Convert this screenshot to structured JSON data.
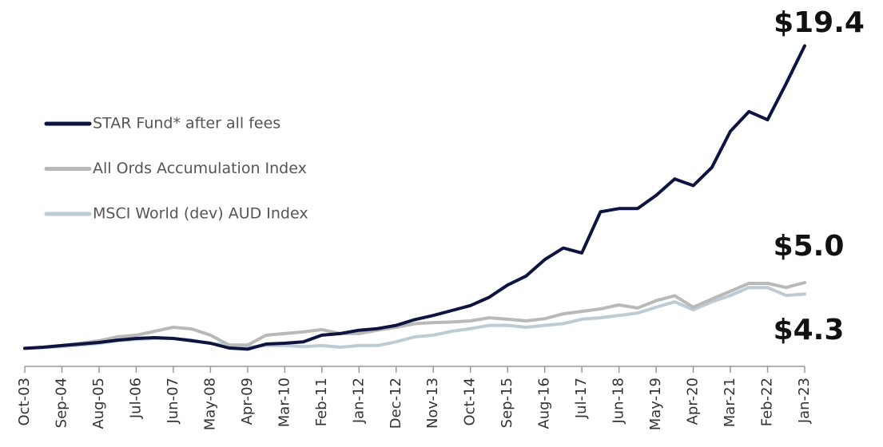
{
  "chart_data": {
    "type": "line",
    "x": [
      "Oct-03",
      null,
      "Sep-04",
      null,
      "Aug-05",
      null,
      "Jul-06",
      null,
      "Jun-07",
      null,
      "May-08",
      null,
      "Apr-09",
      null,
      "Mar-10",
      null,
      "Feb-11",
      null,
      "Jan-12",
      null,
      "Dec-12",
      null,
      "Nov-13",
      null,
      "Oct-14",
      null,
      "Sep-15",
      null,
      "Aug-16",
      null,
      "Jul-17",
      null,
      "Jun-18",
      null,
      "May-19",
      null,
      "Apr-20",
      null,
      "Mar-21",
      null,
      "Feb-22",
      null,
      "Jan-23"
    ],
    "ylim": [
      0,
      20
    ],
    "series": [
      {
        "name": "STAR Fund* after all fees",
        "color": "#0d1440",
        "values": [
          1.0,
          1.07,
          1.17,
          1.26,
          1.36,
          1.5,
          1.6,
          1.65,
          1.6,
          1.46,
          1.31,
          1.02,
          0.95,
          1.26,
          1.31,
          1.4,
          1.8,
          1.9,
          2.1,
          2.2,
          2.4,
          2.75,
          3.0,
          3.3,
          3.6,
          4.1,
          4.85,
          5.4,
          6.4,
          7.1,
          6.8,
          9.3,
          9.5,
          9.5,
          10.3,
          11.3,
          10.9,
          12.0,
          14.2,
          15.4,
          14.9,
          17.1,
          19.4
        ],
        "value_labels": [
          null,
          null,
          null,
          null,
          null,
          null,
          null,
          null,
          null,
          null,
          null,
          null,
          null,
          null,
          null,
          null,
          null,
          null,
          null,
          null,
          null,
          null,
          null,
          null,
          null,
          null,
          null,
          null,
          null,
          null,
          null,
          null,
          null,
          null,
          null,
          null,
          null,
          null,
          null,
          null,
          null,
          null,
          "$19.4"
        ]
      },
      {
        "name": "All Ords Accumulation Index",
        "color": "#b9b9b9",
        "values": [
          1.0,
          1.07,
          1.17,
          1.31,
          1.46,
          1.7,
          1.8,
          2.04,
          2.28,
          2.18,
          1.8,
          1.2,
          1.2,
          1.8,
          1.9,
          2.0,
          2.14,
          1.9,
          1.9,
          2.1,
          2.28,
          2.5,
          2.57,
          2.6,
          2.67,
          2.86,
          2.77,
          2.67,
          2.8,
          3.1,
          3.25,
          3.4,
          3.64,
          3.45,
          3.9,
          4.2,
          3.5,
          4.0,
          4.47,
          4.95,
          4.95,
          4.7,
          5.0
        ],
        "value_labels": [
          null,
          null,
          null,
          null,
          null,
          null,
          null,
          null,
          null,
          null,
          null,
          null,
          null,
          null,
          null,
          null,
          null,
          null,
          null,
          null,
          null,
          null,
          null,
          null,
          null,
          null,
          null,
          null,
          null,
          null,
          null,
          null,
          null,
          null,
          null,
          null,
          null,
          null,
          null,
          null,
          null,
          null,
          "$5.0"
        ]
      },
      {
        "name": "MSCI World (dev) AUD Index",
        "color": "#bdcbd4",
        "values": [
          1.0,
          1.05,
          1.1,
          1.2,
          1.3,
          1.46,
          1.55,
          1.6,
          1.6,
          1.5,
          1.3,
          1.2,
          1.07,
          1.17,
          1.17,
          1.1,
          1.17,
          1.07,
          1.17,
          1.17,
          1.4,
          1.7,
          1.8,
          2.04,
          2.2,
          2.4,
          2.4,
          2.28,
          2.4,
          2.5,
          2.77,
          2.86,
          3.0,
          3.15,
          3.5,
          3.83,
          3.35,
          3.83,
          4.22,
          4.7,
          4.7,
          4.22,
          4.3
        ],
        "value_labels": [
          null,
          null,
          null,
          null,
          null,
          null,
          null,
          null,
          null,
          null,
          null,
          null,
          null,
          null,
          null,
          null,
          null,
          null,
          null,
          null,
          null,
          null,
          null,
          null,
          null,
          null,
          null,
          null,
          null,
          null,
          null,
          null,
          null,
          null,
          null,
          null,
          null,
          null,
          null,
          null,
          null,
          null,
          "$4.3"
        ]
      }
    ]
  }
}
